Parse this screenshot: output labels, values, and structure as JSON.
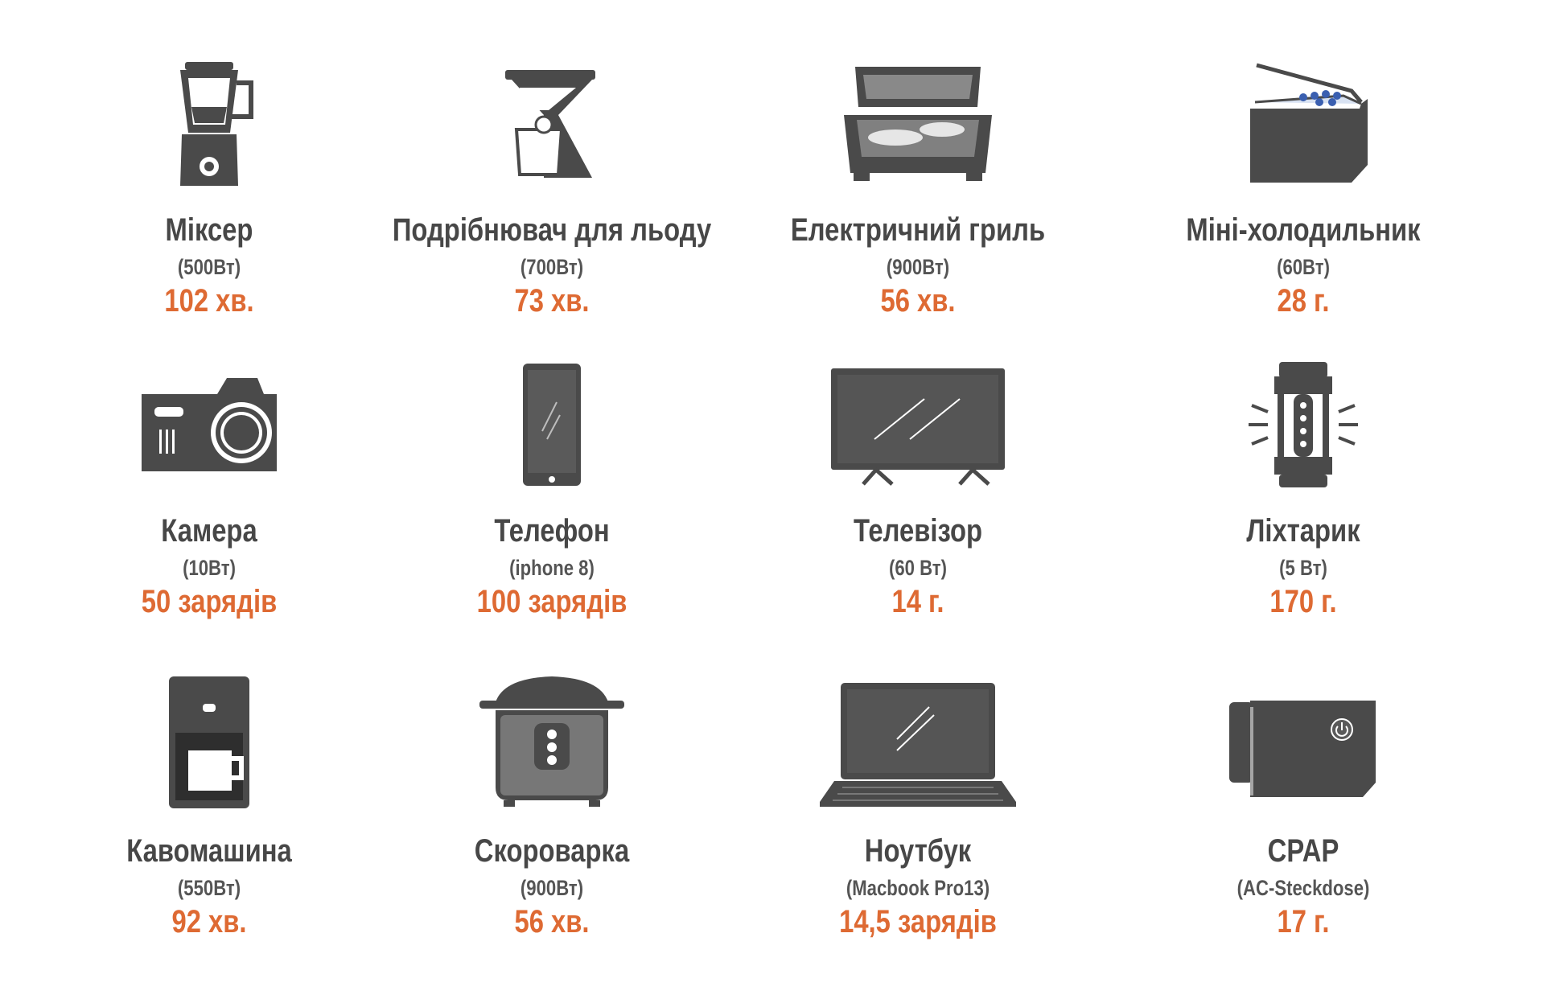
{
  "items": [
    {
      "name": "Міксер",
      "spec": "(500Вт)",
      "value": "102 хв."
    },
    {
      "name": "Подрібнювач для льоду",
      "spec": "(700Вт)",
      "value": "73 хв."
    },
    {
      "name": "Електричний гриль",
      "spec": "(900Вт)",
      "value": "56 хв."
    },
    {
      "name": "Міні-холодильник",
      "spec": "(60Вт)",
      "value": "28 г."
    },
    {
      "name": "Камера",
      "spec": "(10Вт)",
      "value": "50 зарядів"
    },
    {
      "name": "Телефон",
      "spec": "(iphone 8)",
      "value": "100 зарядів"
    },
    {
      "name": "Телевізор",
      "spec": "(60 Вт)",
      "value": "14 г."
    },
    {
      "name": "Ліхтарик",
      "spec": "(5 Вт)",
      "value": "170 г."
    },
    {
      "name": "Кавомашина",
      "spec": "(550Вт)",
      "value": "92 хв."
    },
    {
      "name": "Скороварка",
      "spec": "(900Вт)",
      "value": "56 хв."
    },
    {
      "name": "Ноутбук",
      "spec": "(Macbook Pro13)",
      "value": "14,5 зарядів"
    },
    {
      "name": "CPAP",
      "spec": "(AC-Steckdose)",
      "value": "17 г."
    }
  ]
}
